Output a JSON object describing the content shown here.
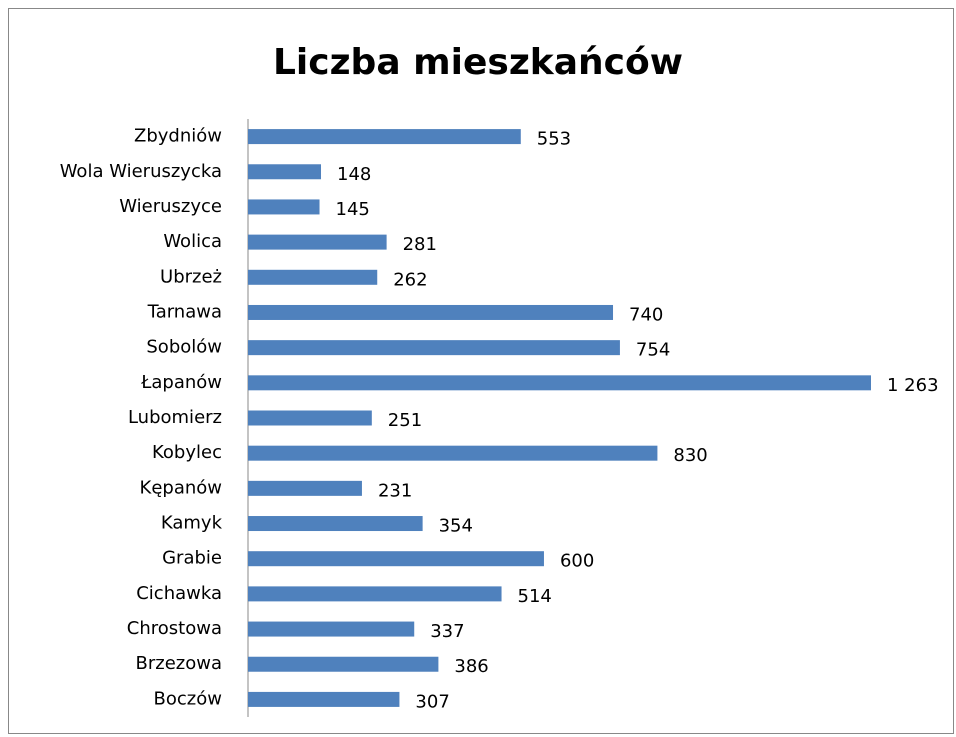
{
  "chart_data": {
    "type": "barh",
    "title": "Liczba mieszkańców",
    "categories": [
      "Zbydniów",
      "Wola Wieruszycka",
      "Wieruszyce",
      "Wolica",
      "Ubrzeż",
      "Tarnawa",
      "Sobolów",
      "Łapanów",
      "Lubomierz",
      "Kobylec",
      "Kępanów",
      "Kamyk",
      "Grabie",
      "Cichawka",
      "Chrostowa",
      "Brzezowa",
      "Boczów"
    ],
    "values": [
      553,
      148,
      145,
      281,
      262,
      740,
      754,
      1263,
      251,
      830,
      231,
      354,
      600,
      514,
      337,
      386,
      307
    ],
    "value_labels": [
      "553",
      "148",
      "145",
      "281",
      "262",
      "740",
      "754",
      "1 263",
      "251",
      "830",
      "231",
      "354",
      "600",
      "514",
      "337",
      "386",
      "307"
    ],
    "color": "#4f81bd"
  }
}
